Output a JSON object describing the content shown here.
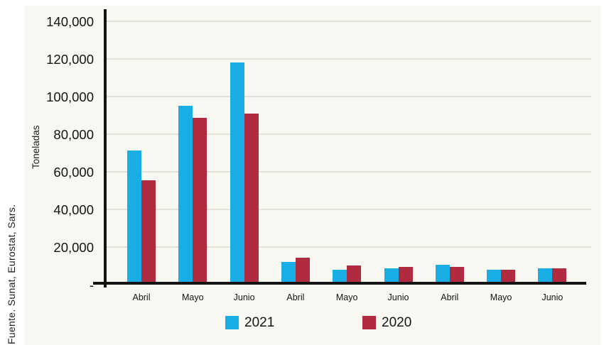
{
  "source_note": "Fuente. Sunat, Eurostat, Sars.",
  "colors": {
    "background": "#ffffff",
    "panel": "#f8f7f1",
    "grid": "#e3e2da",
    "axis": "#141414",
    "text": "#1d1d1b",
    "series_2021": "#18ade4",
    "series_2020": "#b12b40"
  },
  "chart_data": {
    "type": "bar",
    "title": "",
    "xlabel": "",
    "ylabel": "Toneladas",
    "categories": [
      "Abril",
      "Mayo",
      "Junio",
      "Abril",
      "Mayo",
      "Junio",
      "Abril",
      "Mayo",
      "Junio"
    ],
    "series": [
      {
        "name": "2021",
        "color": "#18ade4",
        "values": [
          71500,
          95000,
          118000,
          12000,
          8000,
          8500,
          10500,
          8000,
          8500
        ]
      },
      {
        "name": "2020",
        "color": "#b12b40",
        "values": [
          55500,
          88500,
          91000,
          14500,
          10000,
          9500,
          9500,
          8000,
          8500
        ]
      }
    ],
    "ylim": [
      0,
      140000
    ],
    "ytick_step": 20000,
    "yticks": [
      {
        "value": 140000,
        "label": "140,000"
      },
      {
        "value": 120000,
        "label": "120,000"
      },
      {
        "value": 100000,
        "label": "100,000"
      },
      {
        "value": 80000,
        "label": "80,000"
      },
      {
        "value": 60000,
        "label": "60,000"
      },
      {
        "value": 40000,
        "label": "40,000"
      },
      {
        "value": 20000,
        "label": "20,000"
      },
      {
        "value": 0,
        "label": "-"
      }
    ],
    "grid": true,
    "legend_position": "bottom"
  }
}
